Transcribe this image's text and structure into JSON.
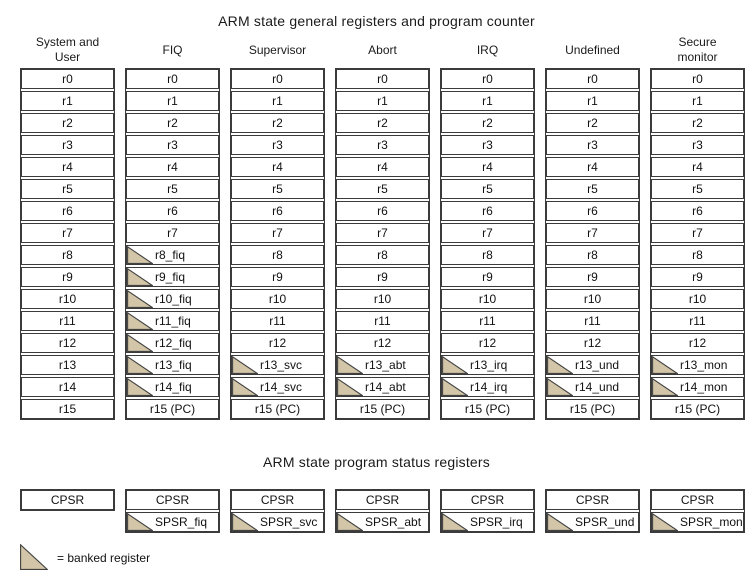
{
  "titles": {
    "general": "ARM state general registers and program counter",
    "status": "ARM state program status registers"
  },
  "legend": {
    "icon": "banked-triangle-icon",
    "label": "= banked register"
  },
  "colors": {
    "banked_fill": "#d3c6a8",
    "triangle_stroke": "#414141",
    "border": "#3b3b3b"
  },
  "columns": [
    {
      "id": "system-user",
      "header_lines": [
        "System and",
        "User"
      ],
      "registers": [
        {
          "label": "r0",
          "banked": false
        },
        {
          "label": "r1",
          "banked": false
        },
        {
          "label": "r2",
          "banked": false
        },
        {
          "label": "r3",
          "banked": false
        },
        {
          "label": "r4",
          "banked": false
        },
        {
          "label": "r5",
          "banked": false
        },
        {
          "label": "r6",
          "banked": false
        },
        {
          "label": "r7",
          "banked": false
        },
        {
          "label": "r8",
          "banked": false
        },
        {
          "label": "r9",
          "banked": false
        },
        {
          "label": "r10",
          "banked": false
        },
        {
          "label": "r11",
          "banked": false
        },
        {
          "label": "r12",
          "banked": false
        },
        {
          "label": "r13",
          "banked": false
        },
        {
          "label": "r14",
          "banked": false
        },
        {
          "label": "r15",
          "banked": false
        }
      ],
      "psr": [
        {
          "label": "CPSR",
          "banked": false
        }
      ]
    },
    {
      "id": "fiq",
      "header_lines": [
        "FIQ"
      ],
      "registers": [
        {
          "label": "r0",
          "banked": false
        },
        {
          "label": "r1",
          "banked": false
        },
        {
          "label": "r2",
          "banked": false
        },
        {
          "label": "r3",
          "banked": false
        },
        {
          "label": "r4",
          "banked": false
        },
        {
          "label": "r5",
          "banked": false
        },
        {
          "label": "r6",
          "banked": false
        },
        {
          "label": "r7",
          "banked": false
        },
        {
          "label": "r8_fiq",
          "banked": true
        },
        {
          "label": "r9_fiq",
          "banked": true
        },
        {
          "label": "r10_fiq",
          "banked": true
        },
        {
          "label": "r11_fiq",
          "banked": true
        },
        {
          "label": "r12_fiq",
          "banked": true
        },
        {
          "label": "r13_fiq",
          "banked": true
        },
        {
          "label": "r14_fiq",
          "banked": true
        },
        {
          "label": "r15 (PC)",
          "banked": false
        }
      ],
      "psr": [
        {
          "label": "CPSR",
          "banked": false
        },
        {
          "label": "SPSR_fiq",
          "banked": true
        }
      ]
    },
    {
      "id": "supervisor",
      "header_lines": [
        "Supervisor"
      ],
      "registers": [
        {
          "label": "r0",
          "banked": false
        },
        {
          "label": "r1",
          "banked": false
        },
        {
          "label": "r2",
          "banked": false
        },
        {
          "label": "r3",
          "banked": false
        },
        {
          "label": "r4",
          "banked": false
        },
        {
          "label": "r5",
          "banked": false
        },
        {
          "label": "r6",
          "banked": false
        },
        {
          "label": "r7",
          "banked": false
        },
        {
          "label": "r8",
          "banked": false
        },
        {
          "label": "r9",
          "banked": false
        },
        {
          "label": "r10",
          "banked": false
        },
        {
          "label": "r11",
          "banked": false
        },
        {
          "label": "r12",
          "banked": false
        },
        {
          "label": "r13_svc",
          "banked": true
        },
        {
          "label": "r14_svc",
          "banked": true
        },
        {
          "label": "r15 (PC)",
          "banked": false
        }
      ],
      "psr": [
        {
          "label": "CPSR",
          "banked": false
        },
        {
          "label": "SPSR_svc",
          "banked": true
        }
      ]
    },
    {
      "id": "abort",
      "header_lines": [
        "Abort"
      ],
      "registers": [
        {
          "label": "r0",
          "banked": false
        },
        {
          "label": "r1",
          "banked": false
        },
        {
          "label": "r2",
          "banked": false
        },
        {
          "label": "r3",
          "banked": false
        },
        {
          "label": "r4",
          "banked": false
        },
        {
          "label": "r5",
          "banked": false
        },
        {
          "label": "r6",
          "banked": false
        },
        {
          "label": "r7",
          "banked": false
        },
        {
          "label": "r8",
          "banked": false
        },
        {
          "label": "r9",
          "banked": false
        },
        {
          "label": "r10",
          "banked": false
        },
        {
          "label": "r11",
          "banked": false
        },
        {
          "label": "r12",
          "banked": false
        },
        {
          "label": "r13_abt",
          "banked": true
        },
        {
          "label": "r14_abt",
          "banked": true
        },
        {
          "label": "r15 (PC)",
          "banked": false
        }
      ],
      "psr": [
        {
          "label": "CPSR",
          "banked": false
        },
        {
          "label": "SPSR_abt",
          "banked": true
        }
      ]
    },
    {
      "id": "irq",
      "header_lines": [
        "IRQ"
      ],
      "registers": [
        {
          "label": "r0",
          "banked": false
        },
        {
          "label": "r1",
          "banked": false
        },
        {
          "label": "r2",
          "banked": false
        },
        {
          "label": "r3",
          "banked": false
        },
        {
          "label": "r4",
          "banked": false
        },
        {
          "label": "r5",
          "banked": false
        },
        {
          "label": "r6",
          "banked": false
        },
        {
          "label": "r7",
          "banked": false
        },
        {
          "label": "r8",
          "banked": false
        },
        {
          "label": "r9",
          "banked": false
        },
        {
          "label": "r10",
          "banked": false
        },
        {
          "label": "r11",
          "banked": false
        },
        {
          "label": "r12",
          "banked": false
        },
        {
          "label": "r13_irq",
          "banked": true
        },
        {
          "label": "r14_irq",
          "banked": true
        },
        {
          "label": "r15 (PC)",
          "banked": false
        }
      ],
      "psr": [
        {
          "label": "CPSR",
          "banked": false
        },
        {
          "label": "SPSR_irq",
          "banked": true
        }
      ]
    },
    {
      "id": "undefined",
      "header_lines": [
        "Undefined"
      ],
      "registers": [
        {
          "label": "r0",
          "banked": false
        },
        {
          "label": "r1",
          "banked": false
        },
        {
          "label": "r2",
          "banked": false
        },
        {
          "label": "r3",
          "banked": false
        },
        {
          "label": "r4",
          "banked": false
        },
        {
          "label": "r5",
          "banked": false
        },
        {
          "label": "r6",
          "banked": false
        },
        {
          "label": "r7",
          "banked": false
        },
        {
          "label": "r8",
          "banked": false
        },
        {
          "label": "r9",
          "banked": false
        },
        {
          "label": "r10",
          "banked": false
        },
        {
          "label": "r11",
          "banked": false
        },
        {
          "label": "r12",
          "banked": false
        },
        {
          "label": "r13_und",
          "banked": true
        },
        {
          "label": "r14_und",
          "banked": true
        },
        {
          "label": "r15 (PC)",
          "banked": false
        }
      ],
      "psr": [
        {
          "label": "CPSR",
          "banked": false
        },
        {
          "label": "SPSR_und",
          "banked": true
        }
      ]
    },
    {
      "id": "secure-monitor",
      "header_lines": [
        "Secure",
        "monitor"
      ],
      "registers": [
        {
          "label": "r0",
          "banked": false
        },
        {
          "label": "r1",
          "banked": false
        },
        {
          "label": "r2",
          "banked": false
        },
        {
          "label": "r3",
          "banked": false
        },
        {
          "label": "r4",
          "banked": false
        },
        {
          "label": "r5",
          "banked": false
        },
        {
          "label": "r6",
          "banked": false
        },
        {
          "label": "r7",
          "banked": false
        },
        {
          "label": "r8",
          "banked": false
        },
        {
          "label": "r9",
          "banked": false
        },
        {
          "label": "r10",
          "banked": false
        },
        {
          "label": "r11",
          "banked": false
        },
        {
          "label": "r12",
          "banked": false
        },
        {
          "label": "r13_mon",
          "banked": true
        },
        {
          "label": "r14_mon",
          "banked": true
        },
        {
          "label": "r15 (PC)",
          "banked": false
        }
      ],
      "psr": [
        {
          "label": "CPSR",
          "banked": false
        },
        {
          "label": "SPSR_mon",
          "banked": true
        }
      ]
    }
  ]
}
